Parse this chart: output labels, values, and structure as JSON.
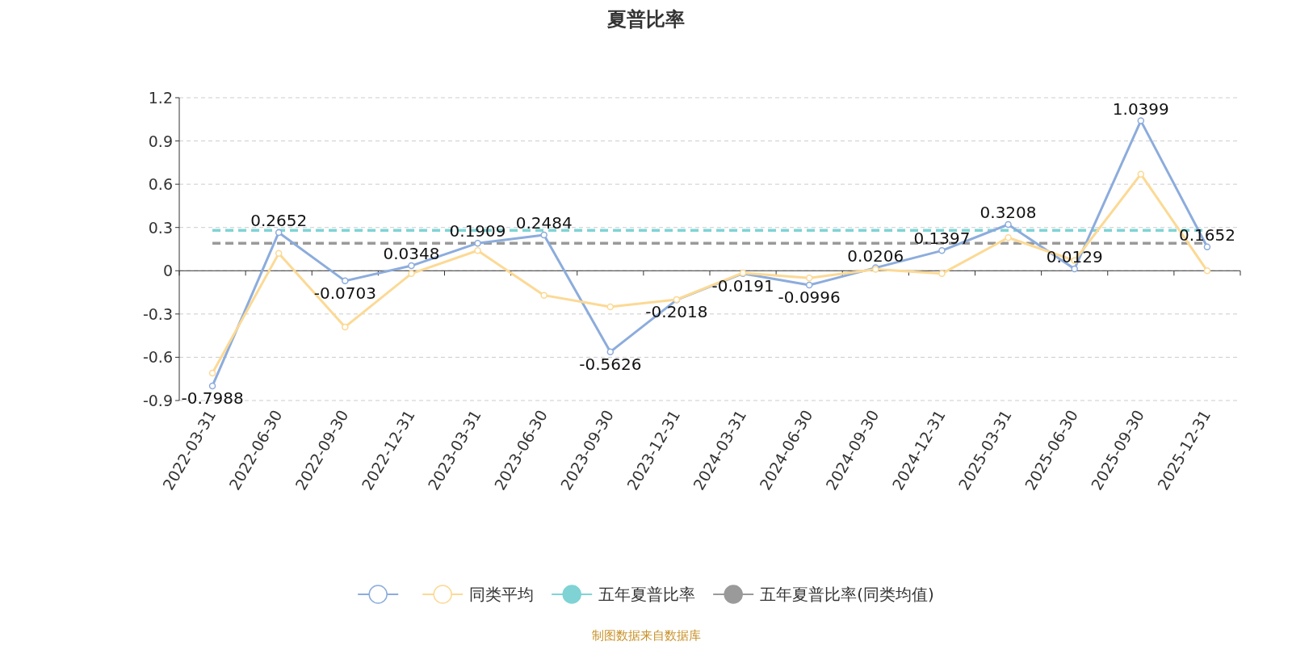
{
  "chart_data": {
    "type": "line",
    "title": "夏普比率",
    "categories": [
      "2022-03-31",
      "2022-06-30",
      "2022-09-30",
      "2022-12-31",
      "2023-03-31",
      "2023-06-30",
      "2023-09-30",
      "2023-12-31",
      "2024-03-31",
      "2024-06-30",
      "2024-09-30",
      "2024-12-31",
      "2025-03-31",
      "2025-06-30",
      "2025-09-30",
      "2025-12-31"
    ],
    "series": [
      {
        "color": "#8cacdc",
        "values": [
          -0.7988,
          0.2652,
          -0.0703,
          0.0348,
          0.1909,
          0.2484,
          -0.5626,
          -0.2018,
          -0.0191,
          -0.0996,
          0.0206,
          0.1397,
          0.3208,
          0.0129,
          1.0399,
          0.1652
        ],
        "value_labels": [
          "-0.7988",
          "0.2652",
          "-0.0703",
          "0.0348",
          "0.1909",
          "0.2484",
          "-0.5626",
          "-0.2018",
          "-0.0191",
          "-0.0996",
          "0.0206",
          "0.1397",
          "0.3208",
          "0.0129",
          "1.0399",
          "0.1652"
        ]
      },
      {
        "name": "同类平均",
        "color": "#fcd994",
        "values": [
          -0.71,
          0.12,
          -0.39,
          -0.02,
          0.14,
          -0.17,
          -0.25,
          -0.2,
          -0.015,
          -0.05,
          0.01,
          -0.02,
          0.23,
          0.07,
          0.67,
          0.0
        ]
      }
    ],
    "ref_lines": [
      {
        "axis": "y",
        "value": 0.28,
        "label": "五年夏普比率",
        "color": "#7fd3d4",
        "line_style": "dashed"
      },
      {
        "axis": "y",
        "value": 0.19,
        "label": "五年夏普比率(同类均值)",
        "color": "#9a9a9a",
        "line_style": "dashed"
      }
    ],
    "ylim": [
      -0.9,
      1.2
    ],
    "yticks": [
      -0.9,
      -0.6,
      -0.3,
      0,
      0.3,
      0.6,
      0.9,
      1.2
    ],
    "grid": "y",
    "marker": "circle",
    "line_style": "solid",
    "legend": "bottom",
    "annotations": [
      "制图数据来自数据库"
    ]
  }
}
